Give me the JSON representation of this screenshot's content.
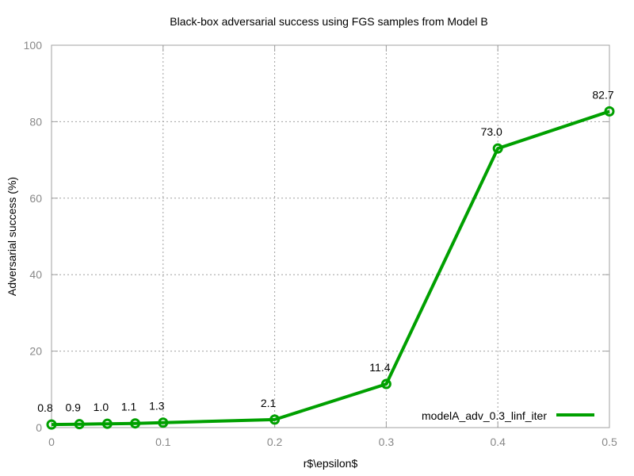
{
  "chart_data": {
    "type": "line",
    "title": "Black-box adversarial success using FGS samples from Model B",
    "xlabel": "r$\\epsilon$",
    "ylabel": "Adversarial success (%)",
    "xlim": [
      0,
      0.5
    ],
    "ylim": [
      0,
      100
    ],
    "xticks": [
      0,
      0.1,
      0.2,
      0.3,
      0.4,
      0.5
    ],
    "xtick_labels": [
      "0",
      "0.1",
      "0.2",
      "0.3",
      "0.4",
      "0.5"
    ],
    "yticks": [
      0,
      20,
      40,
      60,
      80,
      100
    ],
    "ytick_labels": [
      "0",
      "20",
      "40",
      "60",
      "80",
      "100"
    ],
    "grid": true,
    "legend_position": "bottom-right",
    "series": [
      {
        "name": "modelA_adv_0.3_linf_iter",
        "color": "#00a000",
        "x": [
          0,
          0.025,
          0.05,
          0.075,
          0.1,
          0.2,
          0.3,
          0.4,
          0.5
        ],
        "values": [
          0.8,
          0.9,
          1.0,
          1.1,
          1.3,
          2.1,
          11.4,
          73.0,
          82.7
        ],
        "labels": [
          "0.8",
          "0.9",
          "1.0",
          "1.1",
          "1.3",
          "2.1",
          "11.4",
          "73.0",
          "82.7"
        ]
      }
    ]
  }
}
